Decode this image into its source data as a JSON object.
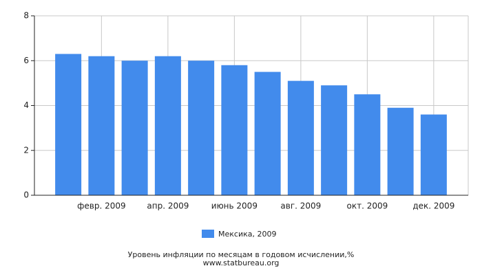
{
  "chart_data": {
    "type": "bar",
    "title": "Уровень инфляции по месяцам в годовом исчислении,%",
    "source": "www.statbureau.org",
    "categories": [
      null,
      "февр. 2009",
      null,
      "апр. 2009",
      null,
      "июнь 2009",
      null,
      "авг. 2009",
      null,
      "окт. 2009",
      null,
      "дек. 2009"
    ],
    "series": [
      {
        "name": "Мексика, 2009",
        "color": "#428bec",
        "values": [
          6.3,
          6.2,
          6.0,
          6.2,
          6.0,
          5.8,
          5.5,
          5.1,
          4.9,
          4.5,
          3.9,
          3.6
        ]
      }
    ],
    "ylim": [
      0,
      8
    ],
    "yticks": [
      0,
      2,
      4,
      6,
      8
    ],
    "grid": true
  }
}
